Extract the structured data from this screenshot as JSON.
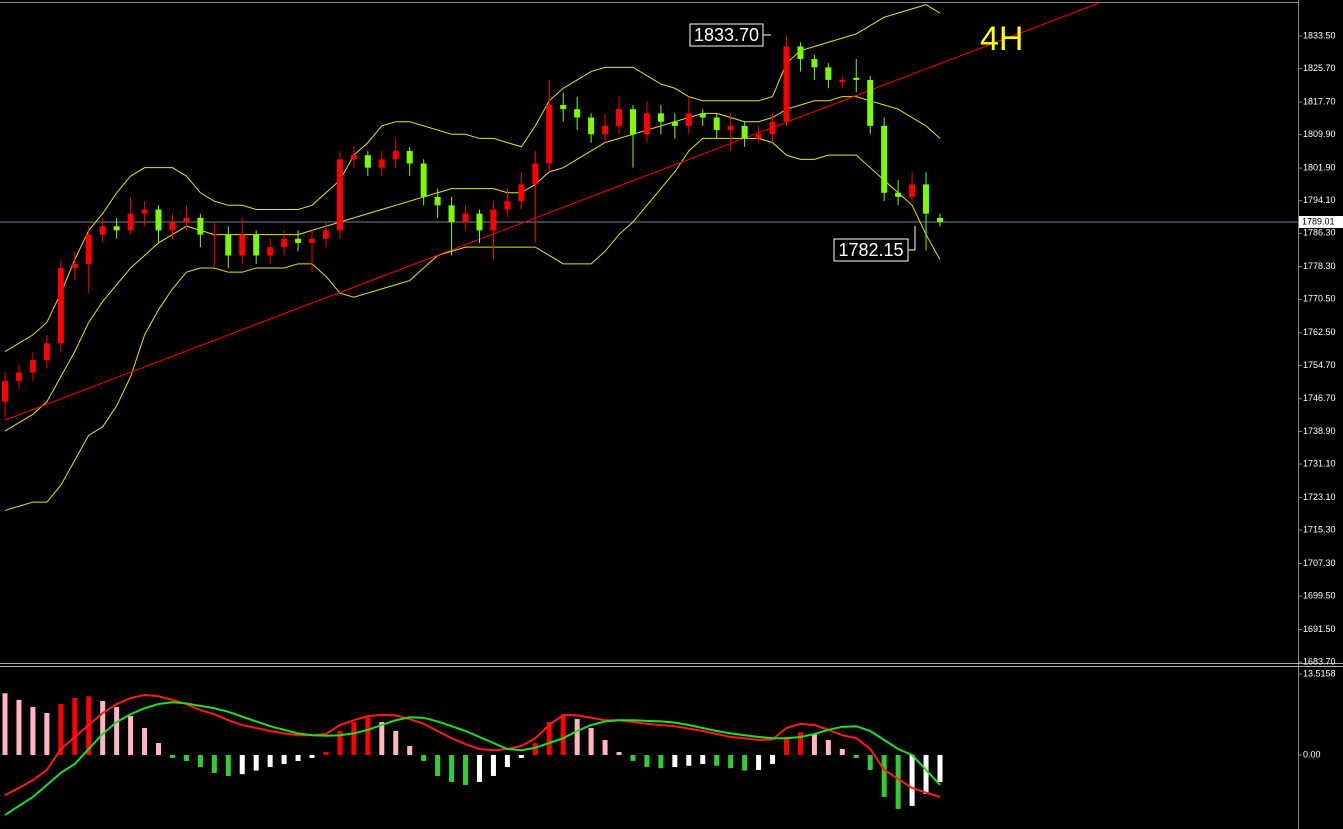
{
  "chart_data": [
    {
      "type": "candlestick",
      "ylim": [
        1683.5,
        1841.4
      ],
      "yticks": [
        {
          "value": 1833.5,
          "label": "1833.50"
        },
        {
          "value": 1825.7,
          "label": "1825.70"
        },
        {
          "value": 1817.7,
          "label": "1817.70"
        },
        {
          "value": 1809.9,
          "label": "1809.90"
        },
        {
          "value": 1801.9,
          "label": "1801.90"
        },
        {
          "value": 1794.1,
          "label": "1794.10"
        },
        {
          "value": 1786.3,
          "label": "1786.30"
        },
        {
          "value": 1778.3,
          "label": "1778.30"
        },
        {
          "value": 1770.5,
          "label": "1770.50"
        },
        {
          "value": 1762.5,
          "label": "1762.50"
        },
        {
          "value": 1754.7,
          "label": "1754.70"
        },
        {
          "value": 1746.7,
          "label": "1746.70"
        },
        {
          "value": 1738.9,
          "label": "1738.90"
        },
        {
          "value": 1731.1,
          "label": "1731.10"
        },
        {
          "value": 1723.1,
          "label": "1723.10"
        },
        {
          "value": 1715.3,
          "label": "1715.30"
        },
        {
          "value": 1707.3,
          "label": "1707.30"
        },
        {
          "value": 1699.5,
          "label": "1699.50"
        },
        {
          "value": 1691.5,
          "label": "1691.50"
        },
        {
          "value": 1683.7,
          "label": "1683.70"
        }
      ],
      "up_color": "#ff0000",
      "down_color": "#7cfc00",
      "open": [
        1746,
        1751,
        1753,
        1756,
        1760,
        1778,
        1779,
        1786,
        1788,
        1787,
        1791,
        1792,
        1787,
        1789,
        1790,
        1786,
        1786,
        1781,
        1786,
        1781,
        1783,
        1785,
        1784,
        1785,
        1787,
        1804,
        1805,
        1802,
        1804,
        1806,
        1803,
        1795,
        1793,
        1789,
        1791,
        1787,
        1792,
        1794,
        1798,
        1803,
        1817,
        1816,
        1814,
        1810,
        1812,
        1816,
        1810,
        1815,
        1813,
        1812,
        1815,
        1814,
        1811,
        1812,
        1809,
        1810,
        1813,
        1831,
        1828,
        1826,
        1822.5,
        1823.5,
        1823,
        1812,
        1796,
        1795,
        1798,
        1790
      ],
      "high": [
        1753,
        1755,
        1758,
        1762,
        1780,
        1782,
        1788,
        1790,
        1790,
        1795,
        1794,
        1793,
        1791,
        1793,
        1791,
        1789,
        1788,
        1790,
        1787,
        1785,
        1787,
        1787,
        1787,
        1789,
        1806,
        1807,
        1806,
        1806,
        1809,
        1807,
        1804,
        1797,
        1795,
        1793,
        1792,
        1794,
        1797,
        1801,
        1806,
        1823,
        1820,
        1819,
        1815,
        1815,
        1819,
        1817,
        1818,
        1817,
        1815,
        1819,
        1816,
        1815,
        1815,
        1813,
        1812,
        1815,
        1833.7,
        1832,
        1829,
        1827,
        1824,
        1828,
        1824,
        1814,
        1799,
        1801,
        1801,
        1791
      ],
      "low": [
        1742,
        1749,
        1751,
        1754,
        1758,
        1775,
        1772,
        1784,
        1785,
        1786,
        1788,
        1784,
        1785,
        1787,
        1783,
        1778,
        1778,
        1779,
        1779,
        1779,
        1781,
        1782,
        1777,
        1783,
        1785,
        1802,
        1800,
        1800,
        1802,
        1800,
        1793,
        1790,
        1781,
        1787,
        1784,
        1780,
        1790,
        1792,
        1784,
        1801,
        1813,
        1811,
        1808,
        1808,
        1810,
        1802,
        1808,
        1810,
        1809,
        1810,
        1812,
        1809,
        1806,
        1807,
        1808,
        1808,
        1812,
        1825,
        1823,
        1821,
        1821,
        1820,
        1810,
        1794,
        1793,
        1794,
        1782.15,
        1788
      ],
      "close": [
        1751,
        1753,
        1756,
        1760,
        1778,
        1779,
        1786,
        1788,
        1787,
        1791,
        1792,
        1787,
        1789,
        1790,
        1786,
        1786,
        1781,
        1786,
        1781,
        1783,
        1785,
        1784,
        1785,
        1787,
        1804,
        1805,
        1802,
        1804,
        1806,
        1803,
        1795,
        1793,
        1789,
        1791,
        1787,
        1792,
        1794,
        1798,
        1803,
        1817,
        1816,
        1814,
        1810,
        1812,
        1816,
        1810,
        1815,
        1813,
        1812,
        1815,
        1814,
        1811,
        1812,
        1809,
        1810,
        1813,
        1831,
        1828,
        1826,
        1823,
        1823,
        1823,
        1812,
        1796,
        1795,
        1798,
        1791,
        1789.01
      ],
      "series": [
        {
          "color": "#e6e600",
          "values": [
            1758,
            1760,
            1762,
            1765,
            1772,
            1780,
            1787,
            1791,
            1796,
            1800,
            1802,
            1802,
            1802,
            1800,
            1796,
            1794,
            1793,
            1793,
            1792,
            1792,
            1792,
            1792,
            1793,
            1796,
            1799,
            1805,
            1808,
            1812,
            1813,
            1813,
            1812,
            1811,
            1810,
            1810,
            1809,
            1809,
            1808,
            1807,
            1812,
            1818,
            1821,
            1823,
            1825,
            1826,
            1826,
            1826,
            1824,
            1822,
            1821,
            1819,
            1818,
            1818,
            1818,
            1818,
            1818,
            1819,
            1827,
            1830,
            1831,
            1832,
            1833,
            1834,
            1836,
            1838,
            1839,
            1840,
            1841,
            1839
          ]
        },
        {
          "color": "#e6e600",
          "values": [
            1739,
            1741,
            1743,
            1746,
            1752,
            1758,
            1765,
            1770,
            1774,
            1778,
            1781,
            1784,
            1786,
            1788,
            1787,
            1786,
            1786,
            1786,
            1786,
            1786,
            1786,
            1786,
            1787,
            1788,
            1789,
            1790,
            1791,
            1792,
            1793,
            1794,
            1795,
            1796,
            1797,
            1797,
            1797,
            1797,
            1796,
            1796,
            1798,
            1801,
            1802,
            1804,
            1806,
            1808,
            1809,
            1810,
            1811,
            1812,
            1813,
            1814,
            1815,
            1815,
            1814,
            1813,
            1813,
            1814,
            1816,
            1817,
            1818,
            1818,
            1819,
            1819,
            1818,
            1817,
            1816,
            1814,
            1812,
            1809
          ]
        },
        {
          "color": "#e6e600",
          "values": [
            1720,
            1721,
            1722,
            1722,
            1726,
            1732,
            1738,
            1740,
            1745,
            1752,
            1762,
            1768,
            1773,
            1777,
            1778,
            1778,
            1777,
            1777,
            1778,
            1778,
            1778,
            1779,
            1779,
            1776,
            1772,
            1771,
            1772,
            1773,
            1774,
            1775,
            1778,
            1781,
            1782,
            1783,
            1783,
            1783,
            1783,
            1783,
            1783,
            1781,
            1779,
            1779,
            1779,
            1782,
            1786,
            1789,
            1793,
            1797,
            1801,
            1806,
            1809,
            1809,
            1809,
            1809,
            1809,
            1808,
            1805,
            1804,
            1804,
            1805,
            1805,
            1805,
            1802,
            1799,
            1796,
            1793,
            1786,
            1780
          ]
        }
      ],
      "trendline": {
        "color": "#ff0000",
        "x": [
          0,
          78.4
        ],
        "y": [
          1741.6,
          1841.4
        ]
      },
      "last_price": {
        "value": 1789.01,
        "label": "1789.01"
      },
      "annotations": [
        {
          "text": "1833.70"
        },
        {
          "text": "1782.15"
        },
        {
          "text": "4H",
          "color": "#ffff00"
        }
      ]
    },
    {
      "type": "macd",
      "ylim": [
        -12.35,
        14.68
      ],
      "yticks": [
        13.5158,
        {
          "value": 0,
          "label": "0.00"
        }
      ],
      "histogram_colors": {
        "rising_positive": "#ff0000",
        "falling_positive": "#ffb6c1",
        "falling_negative": "#32cd32",
        "rising_negative": "#ffffff"
      },
      "histogram": [
        10.3,
        9.2,
        8.0,
        7.0,
        8.5,
        9.5,
        9.8,
        9.0,
        8.0,
        6.5,
        4.5,
        2.0,
        -0.5,
        -1.0,
        -2.0,
        -3.0,
        -3.5,
        -3.2,
        -2.6,
        -2.0,
        -1.5,
        -1.0,
        -0.5,
        0.5,
        4.0,
        5.5,
        6.3,
        5.5,
        4.0,
        1.5,
        -1.0,
        -3.5,
        -4.5,
        -5.0,
        -4.5,
        -3.5,
        -2.0,
        -0.5,
        2.0,
        5.5,
        6.5,
        6.0,
        4.5,
        2.5,
        0.5,
        -1.0,
        -2.0,
        -2.2,
        -2.0,
        -1.8,
        -1.5,
        -1.8,
        -2.2,
        -2.6,
        -2.5,
        -1.5,
        3.0,
        3.8,
        3.5,
        2.5,
        1.0,
        -0.5,
        -2.5,
        -7.0,
        -9.0,
        -8.5,
        -6.5,
        -4.5
      ],
      "series": [
        {
          "color": "#ff1a1a",
          "values": [
            -6.7,
            -5.5,
            -4.2,
            -2.5,
            1.0,
            3.0,
            5.0,
            7.0,
            8.5,
            9.5,
            10.0,
            9.8,
            9.2,
            8.5,
            7.5,
            6.8,
            5.8,
            5.0,
            4.5,
            4.0,
            3.6,
            3.3,
            3.3,
            3.5,
            5.0,
            5.8,
            6.5,
            6.7,
            6.6,
            6.0,
            5.2,
            4.0,
            2.8,
            1.8,
            1.0,
            0.8,
            1.0,
            1.5,
            2.8,
            5.0,
            6.7,
            6.6,
            6.2,
            5.8,
            5.8,
            5.5,
            5.2,
            5.0,
            4.8,
            4.4,
            4.0,
            3.5,
            3.0,
            2.8,
            2.5,
            2.6,
            4.5,
            5.2,
            5.0,
            4.2,
            3.3,
            2.8,
            1.0,
            -2.5,
            -4.0,
            -5.5,
            -6.3,
            -7.0
          ]
        },
        {
          "color": "#22dd22",
          "values": [
            -10,
            -8.5,
            -7,
            -5,
            -3,
            -1.5,
            1,
            3.5,
            5.5,
            6.8,
            7.8,
            8.5,
            8.8,
            8.6,
            8.2,
            7.8,
            7.2,
            6.4,
            5.6,
            4.8,
            4.2,
            3.6,
            3.3,
            3.2,
            3.3,
            3.6,
            4.2,
            5.0,
            5.8,
            6.3,
            6.2,
            5.6,
            4.8,
            4.0,
            3.0,
            2.0,
            1.0,
            0.8,
            1.2,
            2.0,
            2.8,
            4.0,
            5.0,
            5.6,
            5.8,
            5.8,
            5.7,
            5.6,
            5.4,
            5.0,
            4.5,
            4.0,
            3.6,
            3.3,
            3.0,
            2.8,
            2.8,
            3.0,
            3.5,
            4.2,
            4.7,
            4.8,
            4.0,
            2.5,
            1.0,
            0.0,
            -2.5,
            -5.0
          ]
        }
      ]
    }
  ]
}
